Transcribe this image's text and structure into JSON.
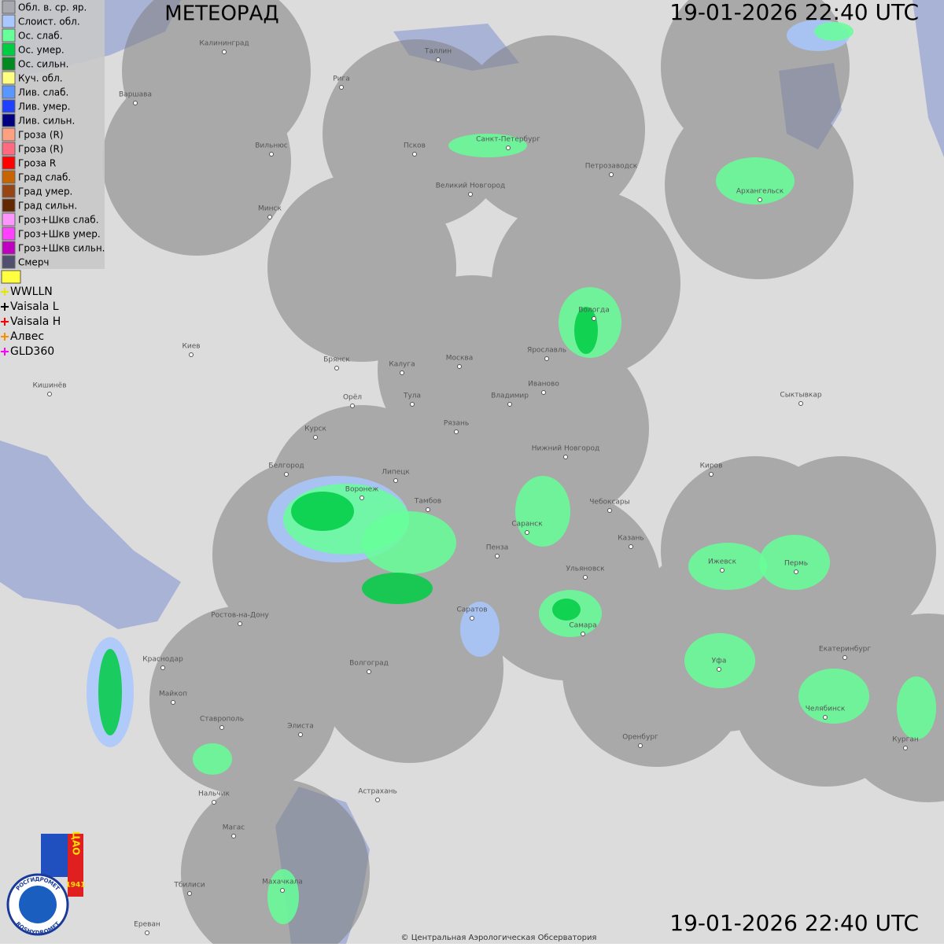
{
  "header": {
    "title": "МЕТЕОРАД",
    "timestamp": "19-01-2026  22:40 UTC"
  },
  "legend": {
    "items": [
      {
        "label": "Обл. в. ср. яр.",
        "color": "#a8a8b0"
      },
      {
        "label": "Слоист. обл.",
        "color": "#a8c8ff"
      },
      {
        "label": "Ос. слаб.",
        "color": "#66ff99"
      },
      {
        "label": "Ос. умер.",
        "color": "#00cc44"
      },
      {
        "label": "Ос. сильн.",
        "color": "#008a20"
      },
      {
        "label": "Куч. обл.",
        "color": "#ffff80"
      },
      {
        "label": "Лив. слаб.",
        "color": "#5a96ff"
      },
      {
        "label": "Лив. умер.",
        "color": "#2040ff"
      },
      {
        "label": "Лив. сильн.",
        "color": "#000080"
      },
      {
        "label": "Гроза (R)",
        "color": "#ffa080"
      },
      {
        "label": "Гроза (R)",
        "color": "#ff6a80"
      },
      {
        "label": "Гроза R",
        "color": "#ff0000"
      },
      {
        "label": "Град слаб.",
        "color": "#c86400"
      },
      {
        "label": "Град умер.",
        "color": "#964614"
      },
      {
        "label": "Град сильн.",
        "color": "#642800"
      },
      {
        "label": "Гроз+Шкв слаб.",
        "color": "#ff96ff"
      },
      {
        "label": "Гроз+Шкв умер.",
        "color": "#ff40ff"
      },
      {
        "label": "Гроз+Шкв сильн.",
        "color": "#c000c0"
      },
      {
        "label": "Смерч",
        "color": "#50506e"
      }
    ],
    "networks": [
      {
        "label": "WWLLN",
        "color": "#e6e600"
      },
      {
        "label": "Vaisala L",
        "color": "#000000"
      },
      {
        "label": "Vaisala H",
        "color": "#ff0000"
      },
      {
        "label": "Алвес",
        "color": "#ff8c00"
      },
      {
        "label": "GLD360",
        "color": "#ff00ff"
      }
    ]
  },
  "cities": [
    "Калининград",
    "Таллин",
    "Рига",
    "Варшава",
    "Вильнюс",
    "Псков",
    "Санкт-Петербург",
    "Петрозаводск",
    "Архангельск",
    "Великий Новгород",
    "Минск",
    "Вологда",
    "Ярославль",
    "Брянск",
    "Калуга",
    "Москва",
    "Иваново",
    "Киев",
    "Кишинёв",
    "Тула",
    "Владимир",
    "Орёл",
    "Сыктывкар",
    "Рязань",
    "Курск",
    "Нижний Новгород",
    "Киров",
    "Белгород",
    "Липецк",
    "Воронеж",
    "Тамбов",
    "Чебоксары",
    "Саранск",
    "Пенза",
    "Казань",
    "Ижевск",
    "Пермь",
    "Ульяновск",
    "Ростов-на-Дону",
    "Саратов",
    "Самара",
    "Волгоград",
    "Краснодар",
    "Уфа",
    "Екатеринбург",
    "Майкоп",
    "Челябинск",
    "Ставрополь",
    "Элиста",
    "Оренбург",
    "Курган",
    "Астрахань",
    "Нальчик",
    "Магас",
    "Тбилиси",
    "Махачкала",
    "Ереван"
  ],
  "logo": {
    "cao": "ЦАО",
    "year": "1941",
    "top": "РОСГИДРОМЕТ",
    "bottom": "ROSHYDROMET"
  },
  "footer": {
    "copyright": "© Центральная Аэрологическая Обсерватория"
  }
}
